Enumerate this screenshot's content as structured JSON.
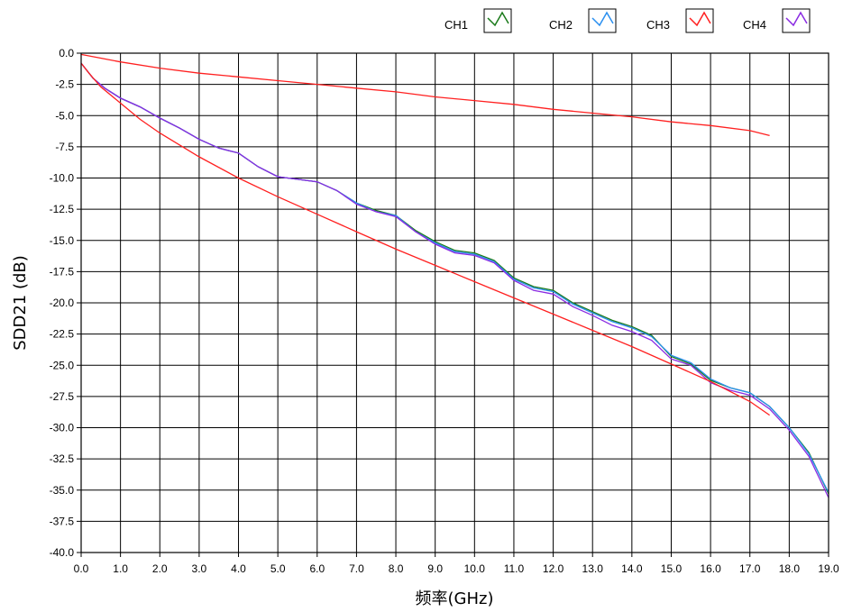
{
  "chart_data": {
    "type": "line",
    "xlabel": "频率(GHz)",
    "ylabel": "SDD21 (dB)",
    "xlim": [
      0,
      19
    ],
    "ylim": [
      -40,
      0
    ],
    "x_ticks": [
      "0.0",
      "1.0",
      "2.0",
      "3.0",
      "4.0",
      "5.0",
      "6.0",
      "7.0",
      "8.0",
      "9.0",
      "10.0",
      "11.0",
      "12.0",
      "13.0",
      "14.0",
      "15.0",
      "16.0",
      "17.0",
      "18.0",
      "19.0"
    ],
    "y_ticks": [
      "0.0",
      "-2.5",
      "-5.0",
      "-7.5",
      "-10.0",
      "-12.5",
      "-15.0",
      "-17.5",
      "-20.0",
      "-22.5",
      "-25.0",
      "-27.5",
      "-30.0",
      "-32.5",
      "-35.0",
      "-37.5",
      "-40.0"
    ],
    "grid": true,
    "legend_position": "top-right",
    "legend": [
      {
        "name": "CH1",
        "color": "#1a7a1a"
      },
      {
        "name": "CH2",
        "color": "#2a8ff0"
      },
      {
        "name": "CH3",
        "color": "#ff2020"
      },
      {
        "name": "CH4",
        "color": "#8a2be2"
      }
    ],
    "series": [
      {
        "name": "CH1",
        "color": "#1a7a1a",
        "x": [
          0.0,
          0.3,
          0.6,
          1.0,
          1.5,
          2.0,
          2.5,
          3.0,
          3.5,
          4.0,
          4.5,
          5.0,
          5.5,
          6.0,
          6.5,
          7.0,
          7.5,
          8.0,
          8.5,
          9.0,
          9.5,
          10.0,
          10.5,
          11.0,
          11.5,
          12.0,
          12.5,
          13.0,
          13.5,
          14.0,
          14.5,
          15.0,
          15.5,
          16.0,
          16.5,
          17.0,
          17.5,
          18.0,
          18.5,
          19.0
        ],
        "y": [
          -0.8,
          -2.0,
          -2.8,
          -3.6,
          -4.3,
          -5.2,
          -6.0,
          -6.9,
          -7.6,
          -8.0,
          -9.1,
          -9.9,
          -10.1,
          -10.3,
          -11.0,
          -12.0,
          -12.6,
          -13.0,
          -14.2,
          -15.1,
          -15.8,
          -16.0,
          -16.6,
          -18.0,
          -18.7,
          -19.0,
          -20.0,
          -20.7,
          -21.4,
          -21.9,
          -22.6,
          -24.3,
          -24.9,
          -26.2,
          -26.8,
          -27.2,
          -28.3,
          -30.0,
          -32.0,
          -35.3
        ]
      },
      {
        "name": "CH2",
        "color": "#2a8ff0",
        "x": [
          0.0,
          0.3,
          0.6,
          1.0,
          1.5,
          2.0,
          2.5,
          3.0,
          3.5,
          4.0,
          4.5,
          5.0,
          5.5,
          6.0,
          6.5,
          7.0,
          7.5,
          8.0,
          8.5,
          9.0,
          9.5,
          10.0,
          10.5,
          11.0,
          11.5,
          12.0,
          12.5,
          13.0,
          13.5,
          14.0,
          14.5,
          15.0,
          15.5,
          16.0,
          16.5,
          17.0,
          17.5,
          18.0,
          18.5,
          19.0
        ],
        "y": [
          -0.8,
          -2.0,
          -2.8,
          -3.6,
          -4.3,
          -5.2,
          -6.0,
          -6.9,
          -7.6,
          -8.0,
          -9.1,
          -9.9,
          -10.1,
          -10.3,
          -11.0,
          -12.0,
          -12.7,
          -13.0,
          -14.3,
          -15.2,
          -15.9,
          -16.1,
          -16.7,
          -18.1,
          -18.8,
          -19.1,
          -20.1,
          -20.8,
          -21.5,
          -22.0,
          -22.7,
          -24.2,
          -24.8,
          -26.1,
          -26.8,
          -27.2,
          -28.3,
          -30.0,
          -32.1,
          -35.2
        ]
      },
      {
        "name": "CH3",
        "color": "#ff2020",
        "x": [
          0.0,
          0.5,
          1.0,
          2.0,
          3.0,
          4.0,
          5.0,
          6.0,
          7.0,
          8.0,
          9.0,
          10.0,
          11.0,
          12.0,
          13.0,
          14.0,
          15.0,
          16.0,
          17.0,
          17.5
        ],
        "y": [
          -0.1,
          -0.4,
          -0.7,
          -1.2,
          -1.6,
          -1.9,
          -2.2,
          -2.5,
          -2.8,
          -3.1,
          -3.5,
          -3.8,
          -4.1,
          -4.5,
          -4.8,
          -5.1,
          -5.5,
          -5.8,
          -6.2,
          -6.6
        ]
      },
      {
        "name": "CH4",
        "color": "#8a2be2",
        "x": [
          0.0,
          0.3,
          0.6,
          1.0,
          1.5,
          2.0,
          2.5,
          3.0,
          3.5,
          4.0,
          4.5,
          5.0,
          5.5,
          6.0,
          6.5,
          7.0,
          7.5,
          8.0,
          8.5,
          9.0,
          9.5,
          10.0,
          10.5,
          11.0,
          11.5,
          12.0,
          12.5,
          13.0,
          13.5,
          14.0,
          14.5,
          15.0,
          15.5,
          16.0,
          16.5,
          17.0,
          17.5,
          18.0,
          18.5,
          19.0
        ],
        "y": [
          -0.8,
          -2.0,
          -2.8,
          -3.6,
          -4.3,
          -5.2,
          -6.0,
          -6.9,
          -7.6,
          -8.0,
          -9.1,
          -9.9,
          -10.1,
          -10.3,
          -11.0,
          -12.1,
          -12.7,
          -13.1,
          -14.3,
          -15.3,
          -16.0,
          -16.2,
          -16.8,
          -18.2,
          -19.0,
          -19.3,
          -20.3,
          -21.0,
          -21.8,
          -22.3,
          -23.0,
          -24.5,
          -25.0,
          -26.4,
          -27.0,
          -27.4,
          -28.5,
          -30.2,
          -32.3,
          -35.6
        ]
      },
      {
        "name": "",
        "color": "#ff2020",
        "x": [
          0.0,
          0.2,
          0.5,
          1.0,
          1.5,
          2.0,
          3.0,
          4.0,
          5.0,
          6.0,
          7.0,
          8.0,
          9.0,
          10.0,
          11.0,
          12.0,
          13.0,
          14.0,
          15.0,
          16.0,
          17.0,
          17.5
        ],
        "y": [
          -0.8,
          -1.6,
          -2.7,
          -4.0,
          -5.3,
          -6.4,
          -8.3,
          -10.0,
          -11.5,
          -12.9,
          -14.3,
          -15.7,
          -17.0,
          -18.3,
          -19.6,
          -20.9,
          -22.2,
          -23.5,
          -24.9,
          -26.3,
          -27.9,
          -29.0
        ]
      }
    ]
  }
}
